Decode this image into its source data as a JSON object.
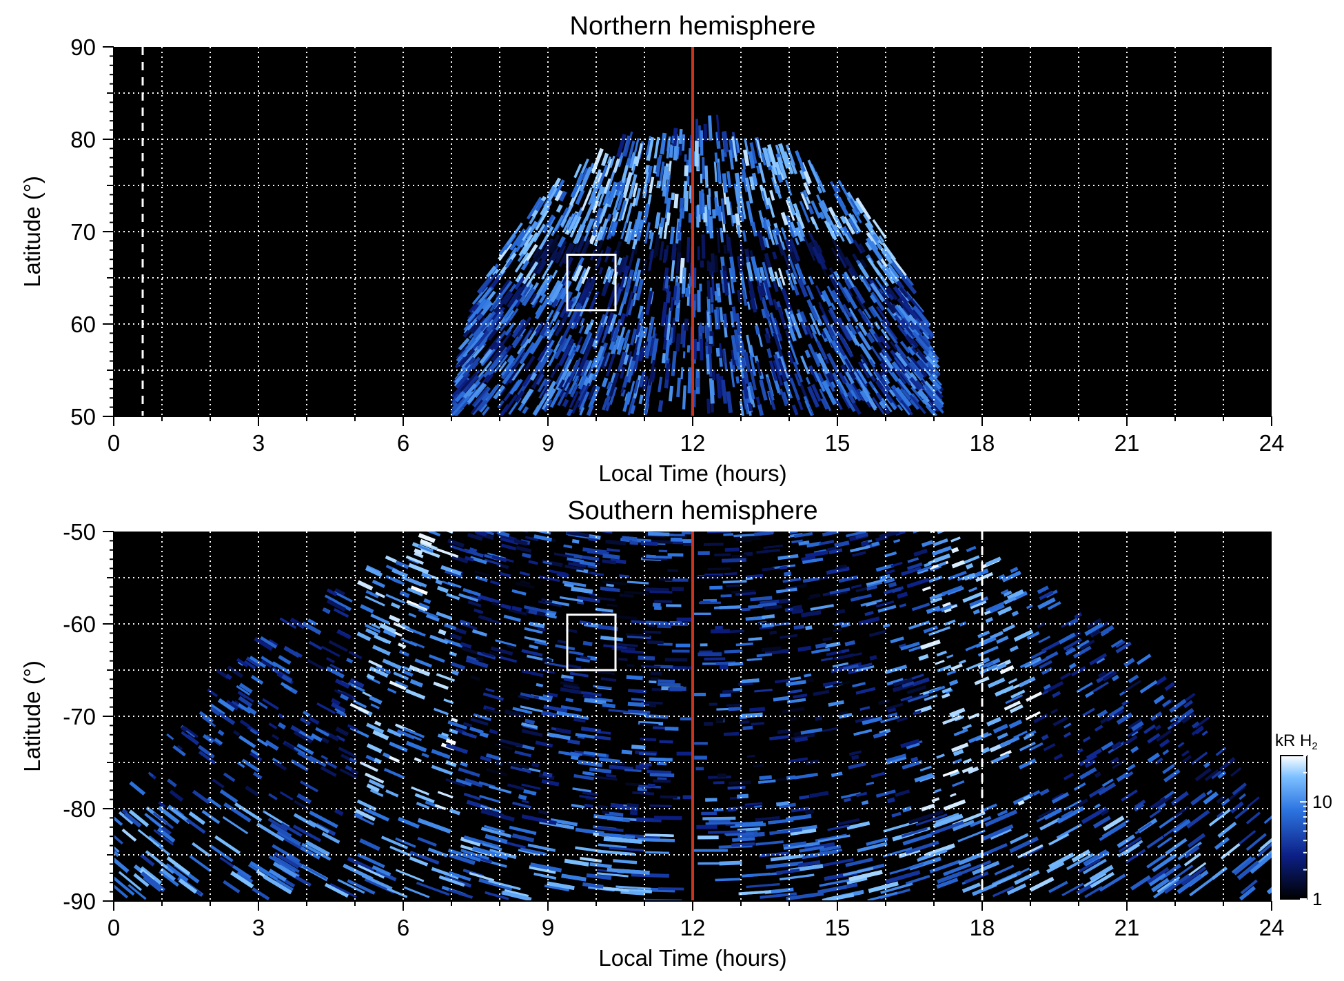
{
  "chart_data": [
    {
      "type": "heatmap",
      "title": "Northern hemisphere",
      "xlabel": "Local Time (hours)",
      "ylabel": "Latitude (°)",
      "xlim": [
        0,
        24
      ],
      "ylim": [
        50,
        90
      ],
      "xticks": [
        "0",
        "3",
        "6",
        "9",
        "12",
        "15",
        "18",
        "21",
        "24"
      ],
      "yticks": [
        "50",
        "60",
        "70",
        "80",
        "90"
      ],
      "grid": true,
      "grid_x_step": 1,
      "grid_y_step": 5,
      "colormap": "black-blue-white",
      "emission_region": {
        "shape": "dome",
        "lt_range": [
          7,
          17.2
        ],
        "lat_range": [
          50,
          80
        ],
        "bright_oval_lat": [
          64,
          78
        ],
        "dark_band_lat": [
          65,
          68
        ]
      },
      "reference_line_lt": 12,
      "reference_line_color": "#c8341e",
      "dashed_line_lt": 0.6,
      "box": {
        "lt": [
          9.4,
          10.4
        ],
        "lat": [
          61.5,
          67.5
        ]
      }
    },
    {
      "type": "heatmap",
      "title": "Southern hemisphere",
      "xlabel": "Local Time (hours)",
      "ylabel": "Latitude (°)",
      "xlim": [
        0,
        24
      ],
      "ylim": [
        -90,
        -50
      ],
      "xticks": [
        "0",
        "3",
        "6",
        "9",
        "12",
        "15",
        "18",
        "21",
        "24"
      ],
      "yticks": [
        "-50",
        "-60",
        "-70",
        "-80",
        "-90"
      ],
      "grid": true,
      "grid_x_step": 1,
      "grid_y_step": 5,
      "colormap": "black-blue-white",
      "emission_region": {
        "shape": "inverted-dome",
        "lt_range": [
          0,
          24
        ],
        "lat_range": [
          -90,
          -50
        ],
        "bright_arcs_lt": [
          6.2,
          17.8
        ],
        "polar_band_lat": [
          -90,
          -81
        ]
      },
      "reference_line_lt": 12,
      "reference_line_color": "#c8341e",
      "dashed_line_lt": 18,
      "box": {
        "lt": [
          9.4,
          10.4
        ],
        "lat": [
          -59,
          -65
        ]
      }
    }
  ],
  "colorbar": {
    "label": "kR H",
    "label_subscript": "2",
    "ticks": [
      "1",
      "10"
    ],
    "range": [
      1,
      30
    ],
    "scale": "log"
  },
  "colors": {
    "background": "#000000",
    "grid": "#ffffff",
    "emission_low": "#0a1a66",
    "emission_mid": "#2f6fd8",
    "emission_high": "#e6f3ff"
  }
}
